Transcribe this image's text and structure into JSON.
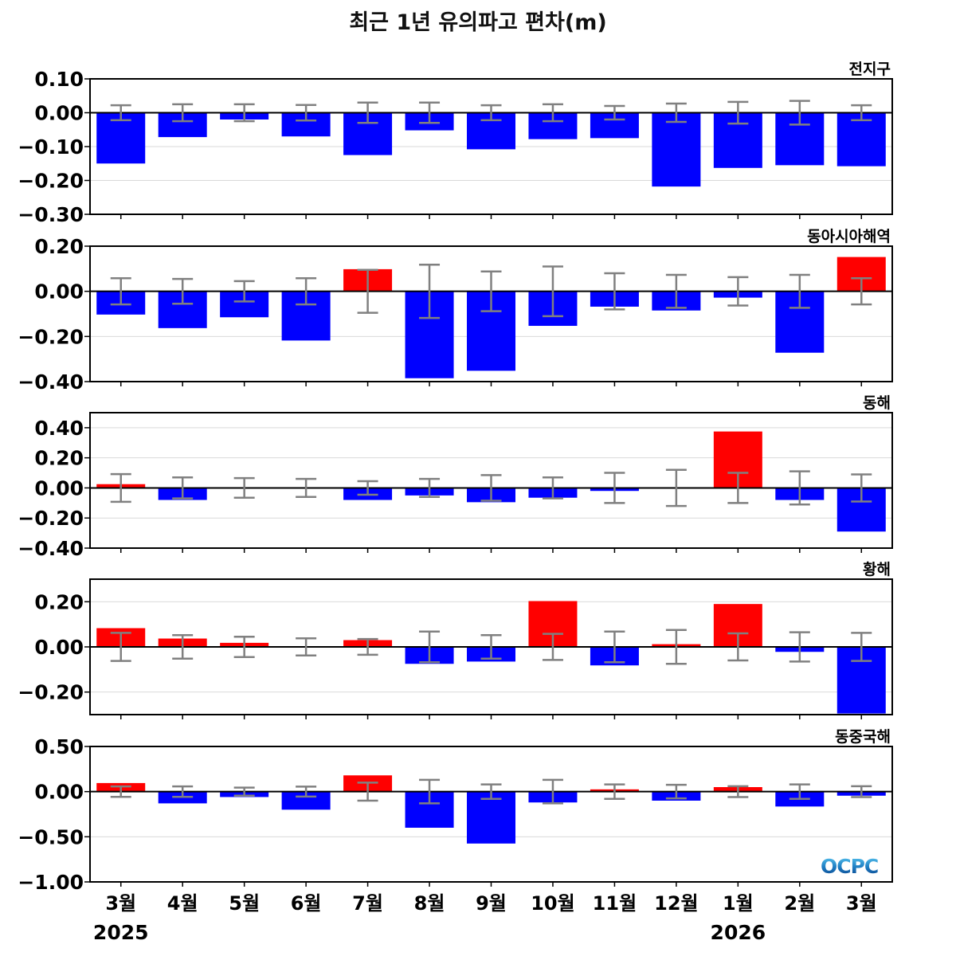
{
  "title": "최근 1년 유의파고 편차(m)",
  "logo_text": "OCPC",
  "colors": {
    "positive": "#ff0000",
    "negative": "#0000ff",
    "error_bar": "#808080",
    "zero_line": "#000000",
    "grid": "#d9d9d9"
  },
  "chart_data": {
    "type": "bar",
    "categories": [
      "3월",
      "4월",
      "5월",
      "6월",
      "7월",
      "8월",
      "9월",
      "10월",
      "11월",
      "12월",
      "1월",
      "2월",
      "3월"
    ],
    "year_labels": [
      {
        "text": "2025",
        "category_index": 0
      },
      {
        "text": "2026",
        "category_index": 10
      }
    ],
    "panels": [
      {
        "name": "전지구",
        "ylim": [
          -0.3,
          0.1
        ],
        "yticks": [
          "0.10",
          "0.00",
          "−0.10",
          "−0.20",
          "−0.30"
        ],
        "ytick_values": [
          0.1,
          0.0,
          -0.1,
          -0.2,
          -0.3
        ],
        "values": [
          -0.15,
          -0.072,
          -0.02,
          -0.07,
          -0.125,
          -0.052,
          -0.108,
          -0.078,
          -0.075,
          -0.218,
          -0.163,
          -0.155,
          -0.158
        ],
        "errors": [
          0.022,
          0.025,
          0.025,
          0.023,
          0.03,
          0.03,
          0.022,
          0.025,
          0.02,
          0.027,
          0.032,
          0.035,
          0.022
        ]
      },
      {
        "name": "동아시아해역",
        "ylim": [
          -0.4,
          0.2
        ],
        "yticks": [
          "0.20",
          "0.00",
          "−0.20",
          "−0.40"
        ],
        "ytick_values": [
          0.2,
          0.0,
          -0.2,
          -0.4
        ],
        "values": [
          -0.103,
          -0.163,
          -0.115,
          -0.218,
          0.098,
          -0.385,
          -0.352,
          -0.153,
          -0.068,
          -0.085,
          -0.028,
          -0.272,
          0.152
        ],
        "errors": [
          0.058,
          0.055,
          0.045,
          0.058,
          0.095,
          0.118,
          0.088,
          0.11,
          0.08,
          0.073,
          0.063,
          0.073,
          0.058
        ]
      },
      {
        "name": "동해",
        "ylim": [
          -0.4,
          0.5
        ],
        "yticks": [
          "0.40",
          "0.20",
          "0.00",
          "−0.20",
          "−0.40"
        ],
        "ytick_values": [
          0.4,
          0.2,
          0.0,
          -0.2,
          -0.4
        ],
        "values": [
          0.025,
          -0.08,
          0.003,
          0.005,
          -0.08,
          -0.05,
          -0.095,
          -0.065,
          -0.02,
          0.002,
          0.375,
          -0.08,
          -0.29
        ],
        "errors": [
          0.092,
          0.07,
          0.065,
          0.06,
          0.045,
          0.06,
          0.085,
          0.07,
          0.1,
          0.12,
          0.1,
          0.11,
          0.09
        ]
      },
      {
        "name": "황해",
        "ylim": [
          -0.3,
          0.3
        ],
        "yticks": [
          "0.20",
          "0.00",
          "−0.20"
        ],
        "ytick_values": [
          0.2,
          0.0,
          -0.2
        ],
        "values": [
          0.083,
          0.037,
          0.018,
          0.003,
          0.03,
          -0.075,
          -0.065,
          0.203,
          -0.082,
          0.012,
          0.19,
          -0.022,
          -0.295
        ],
        "errors": [
          0.062,
          0.052,
          0.045,
          0.038,
          0.035,
          0.068,
          0.052,
          0.058,
          0.068,
          0.075,
          0.06,
          0.065,
          0.062
        ]
      },
      {
        "name": "동중국해",
        "ylim": [
          -1.0,
          0.5
        ],
        "yticks": [
          "0.50",
          "0.00",
          "−0.50",
          "−1.00"
        ],
        "ytick_values": [
          0.5,
          0.0,
          -0.5,
          -1.0
        ],
        "values": [
          0.095,
          -0.13,
          -0.06,
          -0.2,
          0.18,
          -0.4,
          -0.575,
          -0.12,
          0.025,
          -0.1,
          0.05,
          -0.165,
          -0.045
        ],
        "errors": [
          0.058,
          0.058,
          0.045,
          0.055,
          0.1,
          0.13,
          0.08,
          0.13,
          0.08,
          0.075,
          0.06,
          0.08,
          0.06
        ]
      }
    ]
  }
}
